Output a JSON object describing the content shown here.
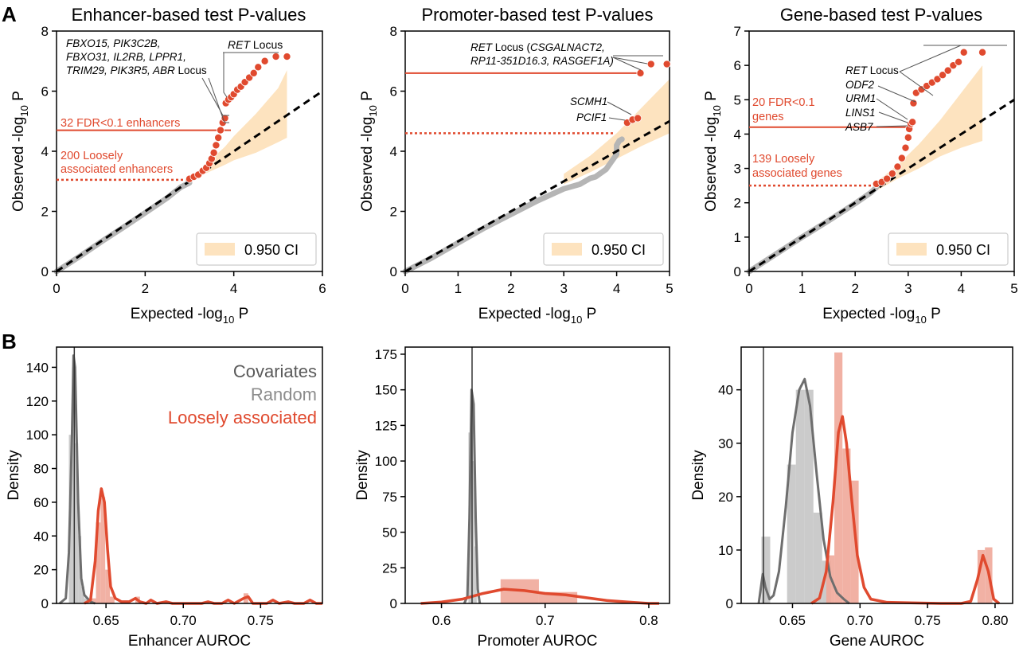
{
  "colors": {
    "red": "#e04a2f",
    "red_light": "#f0a99a",
    "gray": "#b5b5b5",
    "gray_dark": "#6e6e6e",
    "gray_mid": "#8c8c8c",
    "ci": "#fde3bf",
    "black": "#000000"
  },
  "chart_data": [
    {
      "type": "scatter",
      "panel_letter": "A",
      "title": "Enhancer-based test P-values",
      "xlabel_main": "Expected -log",
      "xlabel_sub": "10",
      "xlabel_tail": " P",
      "ylabel_main": "Observed -log",
      "ylabel_sub": "10",
      "ylabel_tail": " P",
      "xlim": [
        0,
        6
      ],
      "ylim": [
        0,
        8
      ],
      "xticks": [
        0,
        2,
        4,
        6
      ],
      "yticks": [
        0,
        2,
        4,
        6,
        8
      ],
      "legend": "0.950 CI",
      "null_points": [
        [
          0.0,
          0.0
        ],
        [
          0.5,
          0.48
        ],
        [
          1.0,
          0.98
        ],
        [
          1.5,
          1.46
        ],
        [
          2.0,
          1.95
        ],
        [
          2.5,
          2.45
        ],
        [
          2.8,
          2.8
        ],
        [
          3.0,
          2.95
        ]
      ],
      "ci_band": {
        "x": [
          3.0,
          3.2,
          3.5,
          3.8,
          4.0,
          4.5,
          5.0,
          5.2
        ],
        "lower": [
          3.0,
          3.15,
          3.35,
          3.55,
          3.7,
          3.95,
          4.3,
          4.45
        ],
        "upper": [
          3.1,
          3.35,
          3.75,
          4.15,
          4.5,
          5.25,
          6.1,
          6.7
        ]
      },
      "red_points": [
        [
          3.0,
          3.08
        ],
        [
          3.1,
          3.15
        ],
        [
          3.2,
          3.22
        ],
        [
          3.3,
          3.35
        ],
        [
          3.38,
          3.45
        ],
        [
          3.45,
          3.6
        ],
        [
          3.5,
          3.75
        ],
        [
          3.55,
          3.95
        ],
        [
          3.6,
          4.2
        ],
        [
          3.65,
          4.45
        ],
        [
          3.7,
          4.7
        ],
        [
          3.75,
          4.95
        ],
        [
          3.8,
          5.1
        ],
        [
          3.82,
          5.6
        ],
        [
          3.88,
          5.72
        ],
        [
          3.94,
          5.8
        ],
        [
          4.0,
          5.9
        ],
        [
          4.08,
          6.05
        ],
        [
          4.16,
          6.15
        ],
        [
          4.25,
          6.3
        ],
        [
          4.35,
          6.45
        ],
        [
          4.45,
          6.6
        ],
        [
          4.55,
          6.8
        ],
        [
          4.7,
          7.0
        ],
        [
          4.95,
          7.15
        ],
        [
          5.2,
          7.15
        ]
      ],
      "fdr_threshold": 4.7,
      "fdr_label": "32 FDR<0.1 enhancers",
      "loose_threshold": 3.05,
      "loose_label": [
        "200 Loosely",
        "associated enhancers"
      ],
      "locus_label_top": [
        "FBXO15, PIK3C2B,",
        "FBXO31, IL2RB, LPPR1,"
      ],
      "locus_label_bottom_italic": "TRIM29, PIK3R5, ABR",
      "locus_label_bottom_suffix": " Locus",
      "ret_label_italic": "RET",
      "ret_label_suffix": " Locus"
    },
    {
      "type": "scatter",
      "title": "Promoter-based test P-values",
      "xlabel_main": "Expected -log",
      "xlabel_sub": "10",
      "xlabel_tail": " P",
      "ylabel_main": "Observed -log",
      "ylabel_sub": "10",
      "ylabel_tail": " P",
      "xlim": [
        0,
        5
      ],
      "ylim": [
        0,
        8
      ],
      "xticks": [
        0,
        1,
        2,
        3,
        4,
        5
      ],
      "yticks": [
        0,
        2,
        4,
        6,
        8
      ],
      "legend": "0.950 CI",
      "null_points": [
        [
          0.0,
          0.0
        ],
        [
          0.5,
          0.45
        ],
        [
          1.0,
          0.95
        ],
        [
          1.5,
          1.45
        ],
        [
          2.0,
          1.9
        ],
        [
          2.5,
          2.35
        ],
        [
          3.0,
          2.75
        ],
        [
          3.3,
          2.9
        ],
        [
          3.4,
          3.0
        ],
        [
          3.5,
          3.1
        ],
        [
          3.6,
          3.15
        ],
        [
          3.8,
          3.4
        ],
        [
          4.0,
          3.9
        ],
        [
          4.0,
          4.2
        ],
        [
          4.05,
          4.35
        ],
        [
          4.1,
          4.4
        ]
      ],
      "ci_band": {
        "x": [
          3.0,
          3.5,
          4.0,
          4.5,
          5.0
        ],
        "lower": [
          2.9,
          3.3,
          3.75,
          4.2,
          4.6
        ],
        "upper": [
          3.25,
          3.85,
          4.6,
          5.5,
          6.4
        ]
      },
      "red_points": [
        [
          4.2,
          4.95
        ],
        [
          4.3,
          5.05
        ],
        [
          4.4,
          5.1
        ],
        [
          4.45,
          6.6
        ],
        [
          4.65,
          6.9
        ],
        [
          4.95,
          6.9
        ]
      ],
      "fdr_threshold": 6.6,
      "loose_threshold": 4.6,
      "ret_label_italic": "RET",
      "ret_label_rest": " Locus (",
      "ret_label_genes1": "CSGALNACT2,",
      "ret_label_genes2": "RP11-351D16.3, RASGEF1A)",
      "scmh1_label": "SCMH1",
      "pcif1_label": "PCIF1"
    },
    {
      "type": "scatter",
      "title": "Gene-based test P-values",
      "xlabel_main": "Expected -log",
      "xlabel_sub": "10",
      "xlabel_tail": " P",
      "ylabel_main": "Observed -log",
      "ylabel_sub": "10",
      "ylabel_tail": " P",
      "xlim": [
        0,
        5
      ],
      "ylim": [
        0,
        7
      ],
      "xticks": [
        0,
        1,
        2,
        3,
        4,
        5
      ],
      "yticks": [
        0,
        1,
        2,
        3,
        4,
        5,
        6,
        7
      ],
      "legend": "0.950 CI",
      "null_points": [
        [
          0.0,
          0.0
        ],
        [
          0.5,
          0.5
        ],
        [
          1.0,
          1.0
        ],
        [
          1.5,
          1.48
        ],
        [
          2.0,
          1.98
        ],
        [
          2.3,
          2.3
        ],
        [
          2.4,
          2.45
        ]
      ],
      "ci_band": {
        "x": [
          2.4,
          2.8,
          3.2,
          3.6,
          4.0,
          4.4
        ],
        "lower": [
          2.35,
          2.7,
          3.0,
          3.35,
          3.6,
          3.8
        ],
        "upper": [
          2.6,
          3.1,
          3.7,
          4.4,
          5.2,
          6.0
        ]
      },
      "red_points": [
        [
          2.4,
          2.55
        ],
        [
          2.5,
          2.6
        ],
        [
          2.6,
          2.7
        ],
        [
          2.7,
          2.85
        ],
        [
          2.8,
          3.05
        ],
        [
          2.88,
          3.3
        ],
        [
          2.95,
          3.6
        ],
        [
          3.0,
          3.9
        ],
        [
          3.02,
          4.15
        ],
        [
          3.05,
          4.3
        ],
        [
          3.08,
          4.35
        ],
        [
          3.1,
          4.9
        ],
        [
          3.15,
          5.2
        ],
        [
          3.25,
          5.3
        ],
        [
          3.35,
          5.4
        ],
        [
          3.45,
          5.5
        ],
        [
          3.55,
          5.6
        ],
        [
          3.65,
          5.72
        ],
        [
          3.75,
          5.85
        ],
        [
          3.85,
          6.0
        ],
        [
          3.95,
          6.1
        ],
        [
          4.05,
          6.38
        ],
        [
          4.4,
          6.38
        ]
      ],
      "fdr_threshold": 4.2,
      "fdr_label": [
        "20 FDR<0.1",
        "genes"
      ],
      "loose_threshold": 2.5,
      "loose_label": [
        "139 Loosely",
        "associated genes"
      ],
      "ret_label_italic": "RET",
      "ret_label_suffix": " Locus",
      "gene_labels": [
        "ODF2",
        "URM1",
        "LINS1",
        "ASB7"
      ]
    },
    {
      "type": "histogram",
      "panel_letter": "B",
      "xlabel": "Enhancer AUROC",
      "ylabel": "Density",
      "xlim": [
        0.618,
        0.79
      ],
      "ylim": [
        0,
        152
      ],
      "xticks": [
        0.65,
        0.7,
        0.75
      ],
      "xticklabels": [
        "0.65",
        "0.70",
        "0.75"
      ],
      "yticks": [
        0,
        20,
        40,
        60,
        80,
        100,
        120,
        140
      ],
      "vline": 0.6295,
      "legend": [
        "Covariates",
        "Random",
        "Loosely associated"
      ],
      "random_bars": [
        {
          "x0": 0.626,
          "x1": 0.628,
          "h": 100
        },
        {
          "x0": 0.628,
          "x1": 0.63,
          "h": 140
        },
        {
          "x0": 0.63,
          "x1": 0.632,
          "h": 95
        },
        {
          "x0": 0.632,
          "x1": 0.634,
          "h": 40
        },
        {
          "x0": 0.634,
          "x1": 0.636,
          "h": 10
        },
        {
          "x0": 0.636,
          "x1": 0.638,
          "h": 3
        }
      ],
      "red_bars": [
        {
          "x0": 0.64,
          "x1": 0.6435,
          "h": 3
        },
        {
          "x0": 0.6435,
          "x1": 0.6465,
          "h": 48
        },
        {
          "x0": 0.6465,
          "x1": 0.6495,
          "h": 63
        },
        {
          "x0": 0.6495,
          "x1": 0.6525,
          "h": 20
        },
        {
          "x0": 0.6525,
          "x1": 0.6555,
          "h": 4
        },
        {
          "x0": 0.669,
          "x1": 0.672,
          "h": 4
        },
        {
          "x0": 0.739,
          "x1": 0.742,
          "h": 6
        }
      ],
      "random_curve": [
        [
          0.62,
          0
        ],
        [
          0.624,
          3
        ],
        [
          0.626,
          30
        ],
        [
          0.628,
          100
        ],
        [
          0.629,
          147
        ],
        [
          0.63,
          140
        ],
        [
          0.632,
          60
        ],
        [
          0.634,
          15
        ],
        [
          0.636,
          5
        ],
        [
          0.638,
          3
        ],
        [
          0.64,
          1
        ],
        [
          0.643,
          0
        ]
      ],
      "red_curve": [
        [
          0.636,
          0
        ],
        [
          0.64,
          2
        ],
        [
          0.643,
          25
        ],
        [
          0.645,
          55
        ],
        [
          0.647,
          68
        ],
        [
          0.649,
          60
        ],
        [
          0.651,
          32
        ],
        [
          0.653,
          10
        ],
        [
          0.656,
          3
        ],
        [
          0.66,
          1
        ],
        [
          0.665,
          1
        ],
        [
          0.669,
          3
        ],
        [
          0.672,
          1
        ],
        [
          0.676,
          0
        ],
        [
          0.679,
          2
        ],
        [
          0.683,
          0
        ],
        [
          0.689,
          1
        ],
        [
          0.693,
          0
        ],
        [
          0.7,
          0
        ],
        [
          0.712,
          0
        ],
        [
          0.716,
          1
        ],
        [
          0.72,
          0
        ],
        [
          0.725,
          0
        ],
        [
          0.729,
          2
        ],
        [
          0.733,
          0
        ],
        [
          0.739,
          3
        ],
        [
          0.742,
          4
        ],
        [
          0.745,
          0
        ],
        [
          0.754,
          0
        ],
        [
          0.758,
          2
        ],
        [
          0.762,
          0
        ],
        [
          0.768,
          1
        ],
        [
          0.772,
          0
        ],
        [
          0.778,
          0
        ],
        [
          0.782,
          2
        ],
        [
          0.786,
          0
        ],
        [
          0.79,
          0
        ]
      ]
    },
    {
      "type": "histogram",
      "xlabel": "Promoter AUROC",
      "ylabel": "Density",
      "xlim": [
        0.565,
        0.82
      ],
      "ylim": [
        0,
        180
      ],
      "xticks": [
        0.6,
        0.7,
        0.8
      ],
      "xticklabels": [
        "0.6",
        "0.7",
        "0.8"
      ],
      "yticks": [
        0,
        25,
        50,
        75,
        100,
        125,
        150,
        175
      ],
      "vline": 0.6295,
      "random_bars": [
        {
          "x0": 0.626,
          "x1": 0.628,
          "h": 120
        },
        {
          "x0": 0.628,
          "x1": 0.63,
          "h": 150
        },
        {
          "x0": 0.63,
          "x1": 0.632,
          "h": 100
        },
        {
          "x0": 0.632,
          "x1": 0.634,
          "h": 40
        }
      ],
      "red_bars": [
        {
          "x0": 0.657,
          "x1": 0.694,
          "h": 17
        },
        {
          "x0": 0.694,
          "x1": 0.731,
          "h": 8
        }
      ],
      "random_curve": [
        [
          0.622,
          0
        ],
        [
          0.625,
          5
        ],
        [
          0.627,
          60
        ],
        [
          0.629,
          150
        ],
        [
          0.631,
          140
        ],
        [
          0.633,
          60
        ],
        [
          0.635,
          10
        ],
        [
          0.637,
          0
        ]
      ],
      "red_curve": [
        [
          0.58,
          0
        ],
        [
          0.6,
          1
        ],
        [
          0.62,
          3
        ],
        [
          0.64,
          7
        ],
        [
          0.66,
          10
        ],
        [
          0.68,
          9
        ],
        [
          0.7,
          7
        ],
        [
          0.72,
          6
        ],
        [
          0.74,
          4
        ],
        [
          0.76,
          2
        ],
        [
          0.78,
          1
        ],
        [
          0.8,
          0
        ],
        [
          0.81,
          0
        ]
      ]
    },
    {
      "type": "histogram",
      "xlabel": "Gene AUROC",
      "ylabel": "Density",
      "xlim": [
        0.612,
        0.813
      ],
      "ylim": [
        0,
        48
      ],
      "xticks": [
        0.65,
        0.7,
        0.75,
        0.8
      ],
      "xticklabels": [
        "0.65",
        "0.70",
        "0.75",
        "0.80"
      ],
      "yticks": [
        0,
        10,
        20,
        30,
        40
      ],
      "vline": 0.6285,
      "gray_bars": [
        {
          "x0": 0.627,
          "x1": 0.6335,
          "h": 12.5
        },
        {
          "x0": 0.646,
          "x1": 0.6525,
          "h": 26
        },
        {
          "x0": 0.6525,
          "x1": 0.659,
          "h": 40
        },
        {
          "x0": 0.659,
          "x1": 0.6655,
          "h": 40
        },
        {
          "x0": 0.6655,
          "x1": 0.672,
          "h": 17
        },
        {
          "x0": 0.672,
          "x1": 0.6785,
          "h": 8
        }
      ],
      "red_bars": [
        {
          "x0": 0.675,
          "x1": 0.681,
          "h": 9
        },
        {
          "x0": 0.681,
          "x1": 0.687,
          "h": 47
        },
        {
          "x0": 0.687,
          "x1": 0.693,
          "h": 29
        },
        {
          "x0": 0.693,
          "x1": 0.699,
          "h": 23
        },
        {
          "x0": 0.787,
          "x1": 0.7925,
          "h": 10
        },
        {
          "x0": 0.7925,
          "x1": 0.798,
          "h": 10.5
        }
      ],
      "gray_curve": [
        [
          0.625,
          0
        ],
        [
          0.628,
          5.5
        ],
        [
          0.63,
          3
        ],
        [
          0.633,
          0.8
        ],
        [
          0.636,
          1.5
        ],
        [
          0.64,
          6
        ],
        [
          0.645,
          18
        ],
        [
          0.65,
          32
        ],
        [
          0.655,
          40
        ],
        [
          0.659,
          42
        ],
        [
          0.663,
          37
        ],
        [
          0.668,
          24
        ],
        [
          0.673,
          12
        ],
        [
          0.678,
          5
        ],
        [
          0.683,
          2
        ],
        [
          0.688,
          0.8
        ],
        [
          0.692,
          0
        ]
      ],
      "red_curve": [
        [
          0.664,
          0
        ],
        [
          0.67,
          1
        ],
        [
          0.675,
          6
        ],
        [
          0.68,
          19
        ],
        [
          0.684,
          32
        ],
        [
          0.687,
          35
        ],
        [
          0.69,
          30
        ],
        [
          0.694,
          19
        ],
        [
          0.698,
          9
        ],
        [
          0.703,
          3
        ],
        [
          0.708,
          0.8
        ],
        [
          0.72,
          0.2
        ],
        [
          0.76,
          0
        ],
        [
          0.775,
          0
        ],
        [
          0.782,
          0.4
        ],
        [
          0.787,
          4.5
        ],
        [
          0.791,
          9
        ],
        [
          0.795,
          6
        ],
        [
          0.799,
          0.8
        ],
        [
          0.803,
          0
        ]
      ]
    }
  ]
}
